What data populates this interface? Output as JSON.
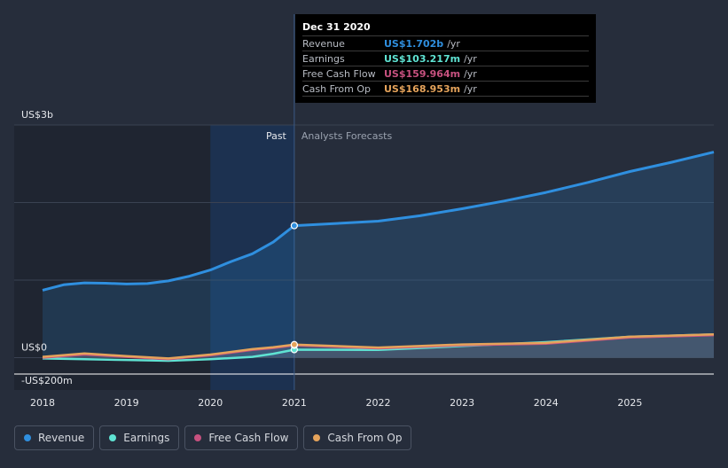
{
  "colors": {
    "revenue": "#2f8fdf",
    "earnings": "#5fe3d3",
    "free_cash_flow": "#c7517f",
    "cash_from_op": "#e5a35b",
    "background": "#262d3b",
    "past_band": "#1f2a3d"
  },
  "tooltip": {
    "title": "Dec 31 2020",
    "rows": [
      {
        "label": "Revenue",
        "value": "US$1.702b",
        "unit": "/yr",
        "color": "#2f8fdf"
      },
      {
        "label": "Earnings",
        "value": "US$103.217m",
        "unit": "/yr",
        "color": "#5fe3d3"
      },
      {
        "label": "Free Cash Flow",
        "value": "US$159.964m",
        "unit": "/yr",
        "color": "#c7517f"
      },
      {
        "label": "Cash From Op",
        "value": "US$168.953m",
        "unit": "/yr",
        "color": "#e5a35b"
      }
    ]
  },
  "legend": [
    {
      "label": "Revenue",
      "color": "#2f8fdf"
    },
    {
      "label": "Earnings",
      "color": "#5fe3d3"
    },
    {
      "label": "Free Cash Flow",
      "color": "#c7517f"
    },
    {
      "label": "Cash From Op",
      "color": "#e5a35b"
    }
  ],
  "chart_data": {
    "type": "line",
    "title": "",
    "xlabel": "",
    "ylabel": "",
    "y_tick_labels": [
      "US$3b",
      "US$0",
      "-US$200m"
    ],
    "x_tick_labels": [
      "2018",
      "2019",
      "2020",
      "2021",
      "2022",
      "2023",
      "2024",
      "2025"
    ],
    "xlim": [
      2018,
      2026
    ],
    "ylim": [
      -200,
      3000
    ],
    "past_label": "Past",
    "forecast_label": "Analysts Forecasts",
    "divider_x": 2021,
    "highlight_start_x": 2020,
    "grid": true,
    "legend_position": "bottom-left",
    "series": [
      {
        "name": "Revenue",
        "color": "#2f8fdf",
        "x": [
          2018,
          2018.25,
          2018.5,
          2018.75,
          2019,
          2019.25,
          2019.5,
          2019.75,
          2020,
          2020.25,
          2020.5,
          2020.75,
          2021,
          2021.5,
          2022,
          2022.5,
          2023,
          2023.5,
          2024,
          2024.5,
          2025,
          2025.5,
          2026
        ],
        "y": [
          870,
          940,
          965,
          960,
          950,
          955,
          990,
          1050,
          1130,
          1240,
          1340,
          1490,
          1702,
          1730,
          1760,
          1830,
          1920,
          2020,
          2130,
          2260,
          2400,
          2520,
          2650
        ]
      },
      {
        "name": "Earnings",
        "color": "#5fe3d3",
        "x": [
          2018,
          2018.5,
          2019,
          2019.5,
          2020,
          2020.5,
          2020.75,
          2021,
          2022,
          2023,
          2024,
          2025,
          2026
        ],
        "y": [
          -10,
          -20,
          -30,
          -40,
          -20,
          10,
          50,
          103.217,
          100,
          150,
          200,
          270,
          300
        ]
      },
      {
        "name": "Free Cash Flow",
        "color": "#c7517f",
        "x": [
          2018,
          2018.5,
          2019,
          2019.5,
          2020,
          2020.5,
          2020.75,
          2021,
          2022,
          2023,
          2024,
          2025,
          2026
        ],
        "y": [
          0,
          40,
          10,
          -20,
          30,
          100,
          125,
          159.964,
          120,
          160,
          180,
          260,
          290
        ]
      },
      {
        "name": "Cash From Op",
        "color": "#e5a35b",
        "x": [
          2018,
          2018.5,
          2019,
          2019.5,
          2020,
          2020.5,
          2020.75,
          2021,
          2022,
          2023,
          2024,
          2025,
          2026
        ],
        "y": [
          10,
          55,
          20,
          -10,
          40,
          110,
          135,
          168.953,
          130,
          170,
          190,
          270,
          300
        ]
      }
    ]
  }
}
